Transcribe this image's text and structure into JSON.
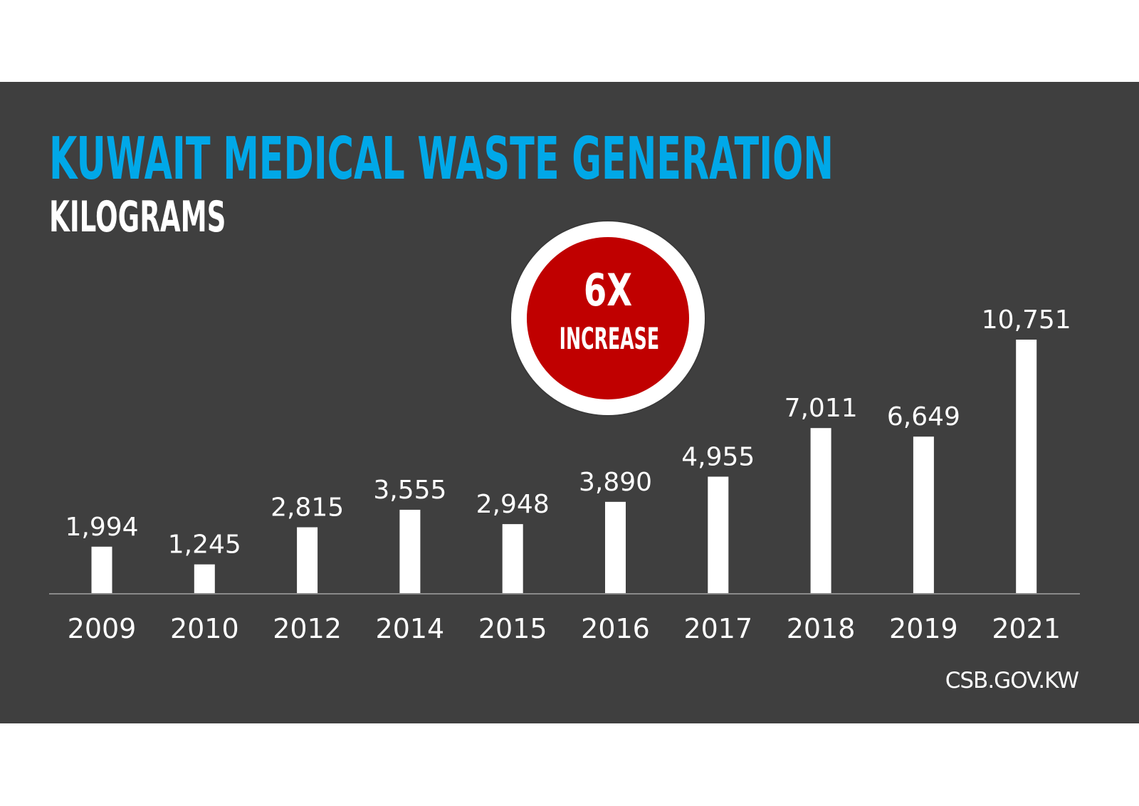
{
  "chart_data": {
    "type": "bar",
    "title": "KUWAIT MEDICAL WASTE GENERATION",
    "subtitle": "KILOGRAMS",
    "xlabel": "",
    "ylabel": "Kilograms",
    "categories": [
      "2009",
      "2010",
      "2012",
      "2014",
      "2015",
      "2016",
      "2017",
      "2018",
      "2019",
      "2021"
    ],
    "values": [
      1994,
      1245,
      2815,
      3555,
      2948,
      3890,
      4955,
      7011,
      6649,
      10751
    ],
    "value_labels": [
      "1,994",
      "1,245",
      "2,815",
      "3,555",
      "2,948",
      "3,890",
      "4,955",
      "7,011",
      "6,649",
      "10,751"
    ],
    "ylim": [
      0,
      10751
    ],
    "grid": false,
    "annotation": {
      "big": "6X",
      "small": "INCREASE"
    },
    "source": "CSB.GOV.KW"
  },
  "colors": {
    "background": "#3f3f3f",
    "title": "#00a8e8",
    "bar": "#ffffff",
    "badge": "#c00000",
    "axis": "#8a8a8a"
  }
}
